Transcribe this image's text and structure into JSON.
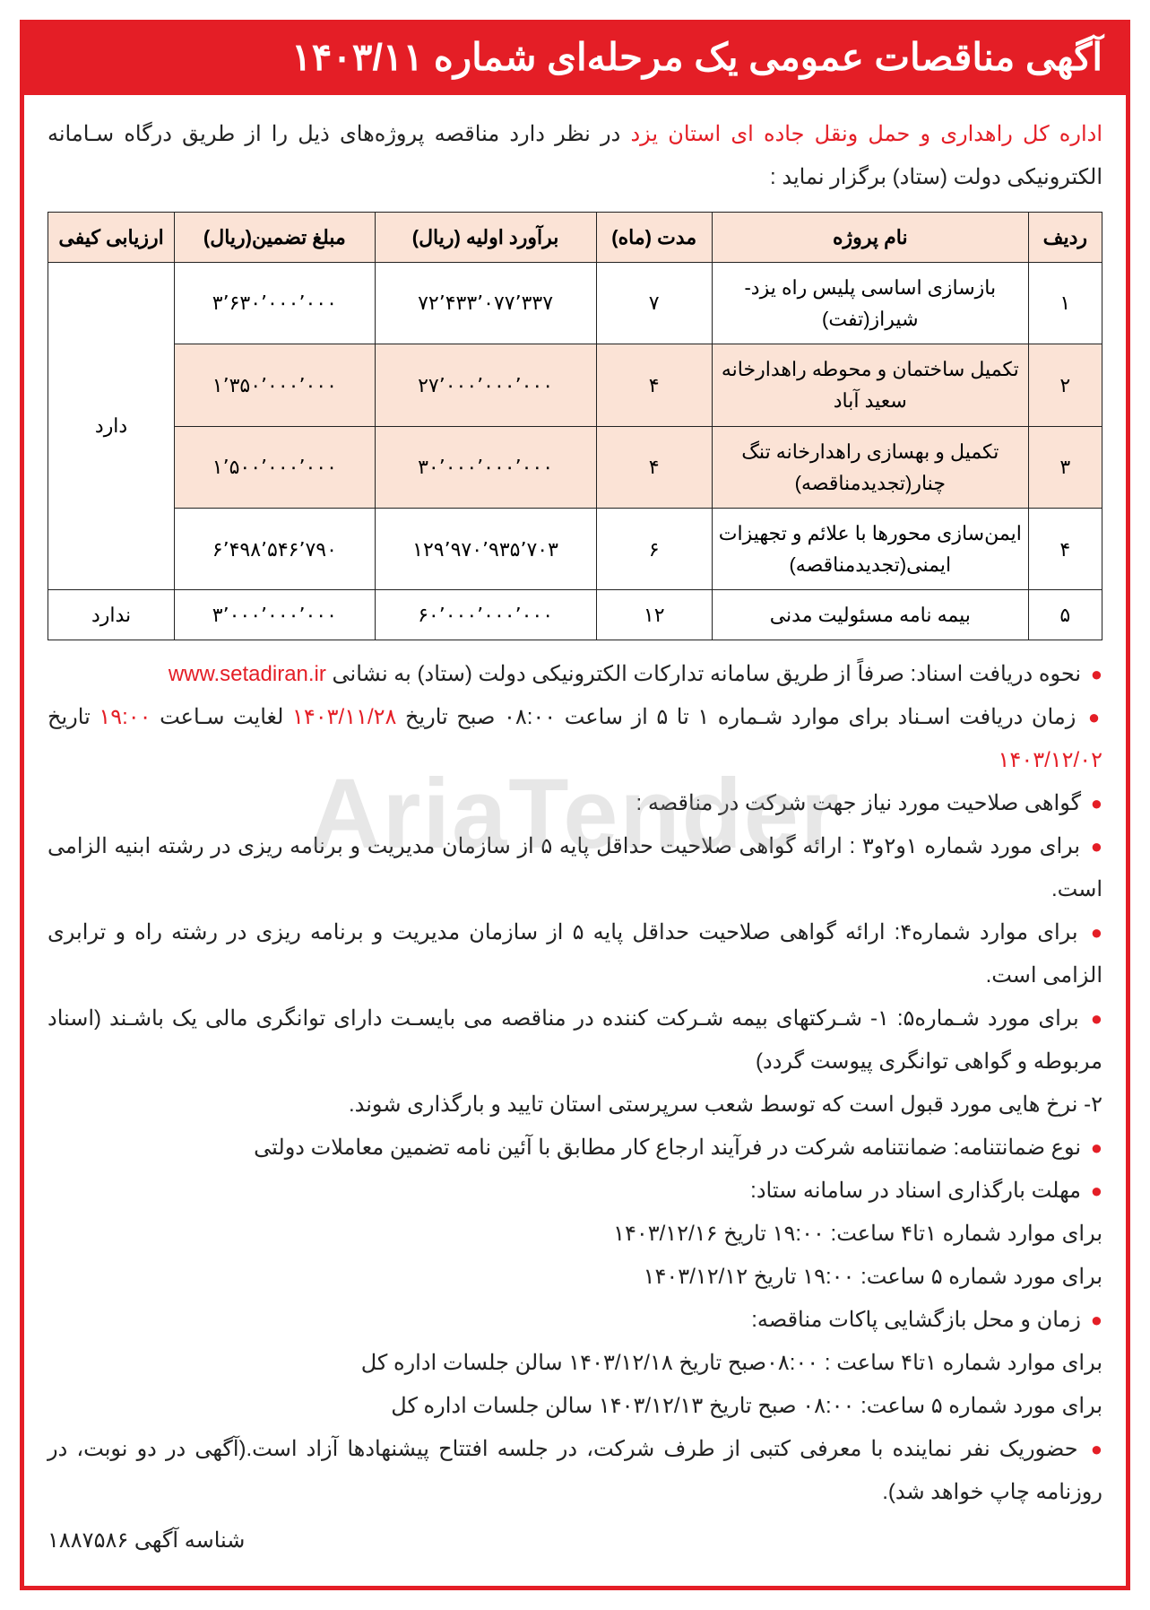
{
  "title": "آگهی مناقصات عمومی یک مرحله‌ای شماره ۱۴۰۳/۱۱",
  "intro_org": "اداره کل راهداری و حمل ونقل جاده ای استان یزد",
  "intro_rest": " در نظر دارد مناقصه پروژه‌های ذیل را از طریق درگاه سـامانه الکترونیکی دولت (ستاد) برگزار نماید :",
  "table": {
    "header": {
      "idx": "ردیف",
      "name": "نام پروژه",
      "duration": "مدت (ماه)",
      "estimate": "برآورد اولیه (ریال)",
      "guarantee": "مبلغ تضمین(ریال)",
      "qual": "ارزیابی کیفی"
    },
    "rows": [
      {
        "idx": "۱",
        "name": "بازسازی اساسی پلیس راه یزد-شیراز(تفت)",
        "dur": "۷",
        "est": "۷۲٬۴۳۳٬۰۷۷٬۳۳۷",
        "gar": "۳٬۶۳۰٬۰۰۰٬۰۰۰"
      },
      {
        "idx": "۲",
        "name": "تکمیل ساختمان و محوطه راهدارخانه سعید آباد",
        "dur": "۴",
        "est": "۲۷٬۰۰۰٬۰۰۰٬۰۰۰",
        "gar": "۱٬۳۵۰٬۰۰۰٬۰۰۰"
      },
      {
        "idx": "۳",
        "name": "تکمیل و بهسازی راهدارخانه تنگ چنار(تجدیدمناقصه)",
        "dur": "۴",
        "est": "۳۰٬۰۰۰٬۰۰۰٬۰۰۰",
        "gar": "۱٬۵۰۰٬۰۰۰٬۰۰۰"
      },
      {
        "idx": "۴",
        "name": "ایمن‌سازی محورها با علائم و تجهیزات ایمنی(تجدیدمناقصه)",
        "dur": "۶",
        "est": "۱۲۹٬۹۷۰٬۹۳۵٬۷۰۳",
        "gar": "۶٬۴۹۸٬۵۴۶٬۷۹۰"
      },
      {
        "idx": "۵",
        "name": "بیمه نامه مسئولیت مدنی",
        "dur": "۱۲",
        "est": "۶۰٬۰۰۰٬۰۰۰٬۰۰۰",
        "gar": "۳٬۰۰۰٬۰۰۰٬۰۰۰"
      }
    ],
    "qual_has": "دارد",
    "qual_none": "ندارد"
  },
  "notes": {
    "n1_pre": "نحوه دریافت اسناد: صرفاً از طریق سامانه تدارکات الکترونیکی دولت (ستاد) به نشانی ",
    "n1_url": "www.setadiran.ir",
    "n2_a": "زمان دریافت اسـناد برای موارد شـماره ۱ تا ۵ از ساعت ۰۸:۰۰ صبح تاریخ ",
    "n2_d1": "۱۴۰۳/۱۱/۲۸",
    "n2_b": " لغایت سـاعت ",
    "n2_t": "۱۹:۰۰",
    "n2_c": " تاریخ ",
    "n2_d2": "۱۴۰۳/۱۲/۰۲",
    "n3": "گواهی صلاحیت مورد نیاز جهت شرکت در مناقصه :",
    "n4": "برای مورد شماره ۱و۲و۳ : ارائه گواهی صلاحیت حداقل پایه ۵ از سازمان مدیریت و برنامه ریزی در رشته ابنیه الزامی است.",
    "n5": "برای موارد شماره۴: ارائه گواهی صلاحیت حداقل پایه ۵ از سازمان مدیریت و برنامه ریزی در رشته راه و ترابری الزامی است.",
    "n6": "برای مورد شـماره۵:  ۱- شـرکتهای بیمه شـرکت کننده در مناقصه می بایسـت دارای توانگری مالی یک باشـند (اسناد مربوطه و گواهی توانگری پیوست گردد)",
    "n6b": "۲- نرخ هایی مورد قبول است که توسط شعب سرپرستی استان تایید و بارگذاری شوند.",
    "n7": "نوع ضمانتنامه: ضمانتنامه شرکت در فرآیند ارجاع کار مطابق با آئین نامه تضمین معاملات دولتی",
    "n8": "مهلت بارگذاری اسناد در سامانه ستاد:",
    "n8a": "برای موارد شماره ۱تا۴ ساعت: ۱۹:۰۰ تاریخ ۱۴۰۳/۱۲/۱۶",
    "n8b": "برای مورد شماره ۵ ساعت: ۱۹:۰۰ تاریخ ۱۴۰۳/۱۲/۱۲",
    "n9": "زمان و محل بازگشایی پاکات مناقصه:",
    "n9a": "برای موارد شماره ۱تا۴ ساعت : ۰۸:۰۰صبح تاریخ ۱۴۰۳/۱۲/۱۸ سالن جلسات اداره کل",
    "n9b": "برای مورد شماره ۵ ساعت: ۰۸:۰۰ صبح تاریخ ۱۴۰۳/۱۲/۱۳  سالن جلسات اداره کل",
    "n10": "حضوریک نفر نماینده با معرفی کتبی از طرف شرکت، در جلسه افتتاح پیشنهادها آزاد است.(آگهی در دو نوبت، در روزنامه چاپ خواهد شد).",
    "ad_id_label": "شناسه آگهی ",
    "ad_id_value": "۱۸۸۷۵۸۶"
  },
  "watermark": "AriaTender",
  "colors": {
    "brand_red": "#e41e26",
    "table_tint": "#fbe3d6",
    "text": "#222222",
    "bg": "#ffffff"
  },
  "typography": {
    "title_pt": 42,
    "body_pt": 24,
    "table_pt": 22
  }
}
